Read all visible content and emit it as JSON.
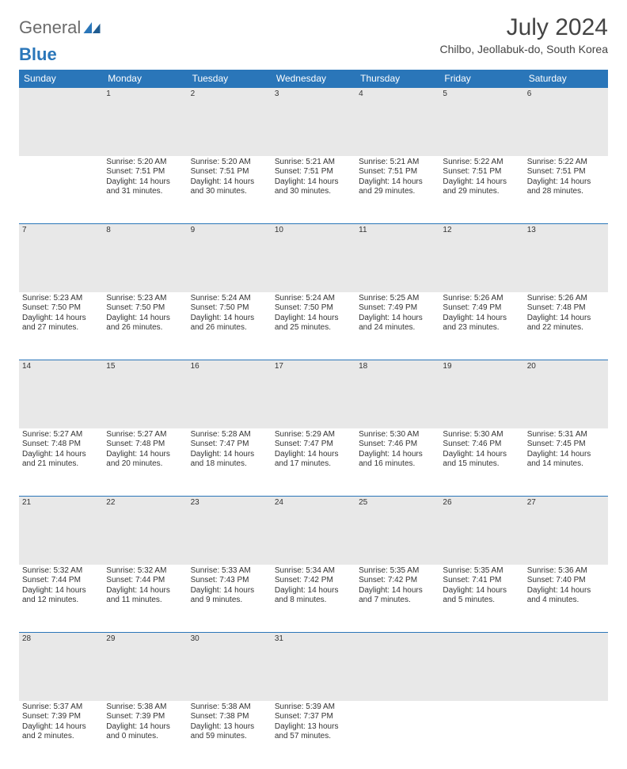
{
  "logo": {
    "text1": "General",
    "text2": "Blue",
    "brand_color": "#2a76b9",
    "grey": "#6b6b6b"
  },
  "title": "July 2024",
  "location": "Chilbo, Jeollabuk-do, South Korea",
  "header_bg": "#2a76b9",
  "header_text_color": "#ffffff",
  "daynum_bg": "#e8e8e8",
  "day_headers": [
    "Sunday",
    "Monday",
    "Tuesday",
    "Wednesday",
    "Thursday",
    "Friday",
    "Saturday"
  ],
  "weeks": [
    {
      "nums": [
        "",
        "1",
        "2",
        "3",
        "4",
        "5",
        "6"
      ],
      "cells": [
        null,
        {
          "sunrise": "Sunrise: 5:20 AM",
          "sunset": "Sunset: 7:51 PM",
          "day1": "Daylight: 14 hours",
          "day2": "and 31 minutes."
        },
        {
          "sunrise": "Sunrise: 5:20 AM",
          "sunset": "Sunset: 7:51 PM",
          "day1": "Daylight: 14 hours",
          "day2": "and 30 minutes."
        },
        {
          "sunrise": "Sunrise: 5:21 AM",
          "sunset": "Sunset: 7:51 PM",
          "day1": "Daylight: 14 hours",
          "day2": "and 30 minutes."
        },
        {
          "sunrise": "Sunrise: 5:21 AM",
          "sunset": "Sunset: 7:51 PM",
          "day1": "Daylight: 14 hours",
          "day2": "and 29 minutes."
        },
        {
          "sunrise": "Sunrise: 5:22 AM",
          "sunset": "Sunset: 7:51 PM",
          "day1": "Daylight: 14 hours",
          "day2": "and 29 minutes."
        },
        {
          "sunrise": "Sunrise: 5:22 AM",
          "sunset": "Sunset: 7:51 PM",
          "day1": "Daylight: 14 hours",
          "day2": "and 28 minutes."
        }
      ]
    },
    {
      "nums": [
        "7",
        "8",
        "9",
        "10",
        "11",
        "12",
        "13"
      ],
      "cells": [
        {
          "sunrise": "Sunrise: 5:23 AM",
          "sunset": "Sunset: 7:50 PM",
          "day1": "Daylight: 14 hours",
          "day2": "and 27 minutes."
        },
        {
          "sunrise": "Sunrise: 5:23 AM",
          "sunset": "Sunset: 7:50 PM",
          "day1": "Daylight: 14 hours",
          "day2": "and 26 minutes."
        },
        {
          "sunrise": "Sunrise: 5:24 AM",
          "sunset": "Sunset: 7:50 PM",
          "day1": "Daylight: 14 hours",
          "day2": "and 26 minutes."
        },
        {
          "sunrise": "Sunrise: 5:24 AM",
          "sunset": "Sunset: 7:50 PM",
          "day1": "Daylight: 14 hours",
          "day2": "and 25 minutes."
        },
        {
          "sunrise": "Sunrise: 5:25 AM",
          "sunset": "Sunset: 7:49 PM",
          "day1": "Daylight: 14 hours",
          "day2": "and 24 minutes."
        },
        {
          "sunrise": "Sunrise: 5:26 AM",
          "sunset": "Sunset: 7:49 PM",
          "day1": "Daylight: 14 hours",
          "day2": "and 23 minutes."
        },
        {
          "sunrise": "Sunrise: 5:26 AM",
          "sunset": "Sunset: 7:48 PM",
          "day1": "Daylight: 14 hours",
          "day2": "and 22 minutes."
        }
      ]
    },
    {
      "nums": [
        "14",
        "15",
        "16",
        "17",
        "18",
        "19",
        "20"
      ],
      "cells": [
        {
          "sunrise": "Sunrise: 5:27 AM",
          "sunset": "Sunset: 7:48 PM",
          "day1": "Daylight: 14 hours",
          "day2": "and 21 minutes."
        },
        {
          "sunrise": "Sunrise: 5:27 AM",
          "sunset": "Sunset: 7:48 PM",
          "day1": "Daylight: 14 hours",
          "day2": "and 20 minutes."
        },
        {
          "sunrise": "Sunrise: 5:28 AM",
          "sunset": "Sunset: 7:47 PM",
          "day1": "Daylight: 14 hours",
          "day2": "and 18 minutes."
        },
        {
          "sunrise": "Sunrise: 5:29 AM",
          "sunset": "Sunset: 7:47 PM",
          "day1": "Daylight: 14 hours",
          "day2": "and 17 minutes."
        },
        {
          "sunrise": "Sunrise: 5:30 AM",
          "sunset": "Sunset: 7:46 PM",
          "day1": "Daylight: 14 hours",
          "day2": "and 16 minutes."
        },
        {
          "sunrise": "Sunrise: 5:30 AM",
          "sunset": "Sunset: 7:46 PM",
          "day1": "Daylight: 14 hours",
          "day2": "and 15 minutes."
        },
        {
          "sunrise": "Sunrise: 5:31 AM",
          "sunset": "Sunset: 7:45 PM",
          "day1": "Daylight: 14 hours",
          "day2": "and 14 minutes."
        }
      ]
    },
    {
      "nums": [
        "21",
        "22",
        "23",
        "24",
        "25",
        "26",
        "27"
      ],
      "cells": [
        {
          "sunrise": "Sunrise: 5:32 AM",
          "sunset": "Sunset: 7:44 PM",
          "day1": "Daylight: 14 hours",
          "day2": "and 12 minutes."
        },
        {
          "sunrise": "Sunrise: 5:32 AM",
          "sunset": "Sunset: 7:44 PM",
          "day1": "Daylight: 14 hours",
          "day2": "and 11 minutes."
        },
        {
          "sunrise": "Sunrise: 5:33 AM",
          "sunset": "Sunset: 7:43 PM",
          "day1": "Daylight: 14 hours",
          "day2": "and 9 minutes."
        },
        {
          "sunrise": "Sunrise: 5:34 AM",
          "sunset": "Sunset: 7:42 PM",
          "day1": "Daylight: 14 hours",
          "day2": "and 8 minutes."
        },
        {
          "sunrise": "Sunrise: 5:35 AM",
          "sunset": "Sunset: 7:42 PM",
          "day1": "Daylight: 14 hours",
          "day2": "and 7 minutes."
        },
        {
          "sunrise": "Sunrise: 5:35 AM",
          "sunset": "Sunset: 7:41 PM",
          "day1": "Daylight: 14 hours",
          "day2": "and 5 minutes."
        },
        {
          "sunrise": "Sunrise: 5:36 AM",
          "sunset": "Sunset: 7:40 PM",
          "day1": "Daylight: 14 hours",
          "day2": "and 4 minutes."
        }
      ]
    },
    {
      "nums": [
        "28",
        "29",
        "30",
        "31",
        "",
        "",
        ""
      ],
      "cells": [
        {
          "sunrise": "Sunrise: 5:37 AM",
          "sunset": "Sunset: 7:39 PM",
          "day1": "Daylight: 14 hours",
          "day2": "and 2 minutes."
        },
        {
          "sunrise": "Sunrise: 5:38 AM",
          "sunset": "Sunset: 7:39 PM",
          "day1": "Daylight: 14 hours",
          "day2": "and 0 minutes."
        },
        {
          "sunrise": "Sunrise: 5:38 AM",
          "sunset": "Sunset: 7:38 PM",
          "day1": "Daylight: 13 hours",
          "day2": "and 59 minutes."
        },
        {
          "sunrise": "Sunrise: 5:39 AM",
          "sunset": "Sunset: 7:37 PM",
          "day1": "Daylight: 13 hours",
          "day2": "and 57 minutes."
        },
        null,
        null,
        null
      ]
    }
  ]
}
